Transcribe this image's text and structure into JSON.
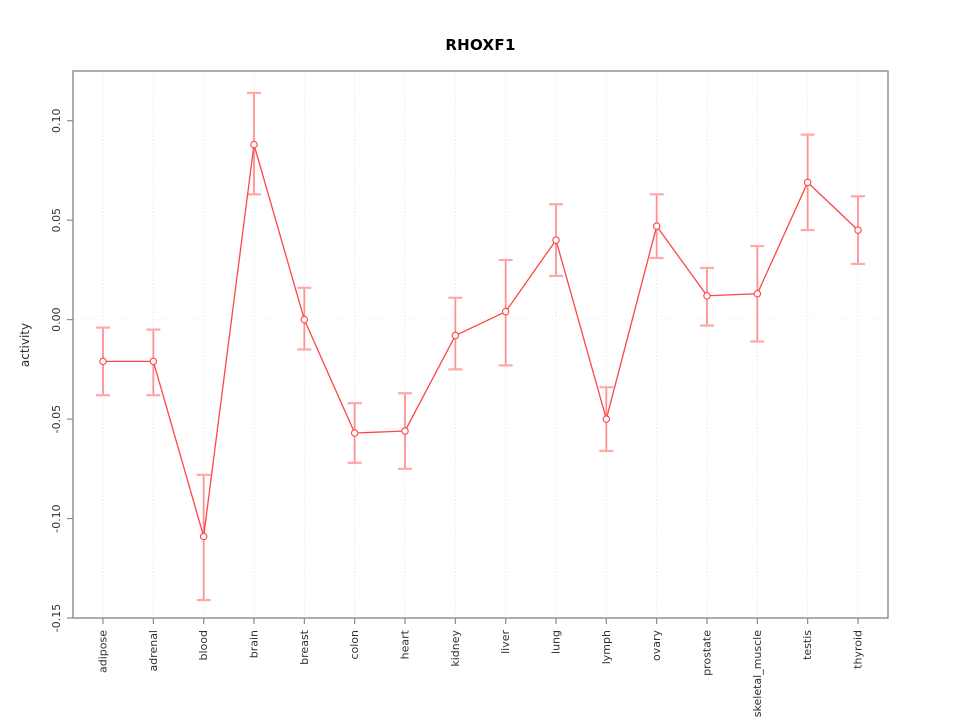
{
  "colors": {
    "series": "#ff4545",
    "marker_fill": "#ffffff",
    "error_bar": "#ff9090",
    "error_cap": "#ffa8a8",
    "frame": "#8a8a8a",
    "tick": "#8a8a8a",
    "grid": "#e2e2e2",
    "zero_line": "#ededed",
    "text": "#303030",
    "title": "#000000",
    "background": "#ffffff"
  },
  "chart_data": {
    "type": "line",
    "title": "RHOXF1",
    "xlabel": "",
    "ylabel": "activity",
    "categories": [
      "adipose",
      "adrenal",
      "blood",
      "brain",
      "breast",
      "colon",
      "heart",
      "kidney",
      "liver",
      "lung",
      "lymph",
      "ovary",
      "prostate",
      "skeletal_muscle",
      "testis",
      "thyroid"
    ],
    "series": [
      {
        "name": "RHOXF1 activity",
        "values": [
          -0.021,
          -0.021,
          -0.109,
          0.088,
          0.0,
          -0.057,
          -0.056,
          -0.008,
          0.004,
          0.04,
          -0.05,
          0.047,
          0.012,
          0.013,
          0.069,
          0.045
        ],
        "upper": [
          -0.004,
          -0.005,
          -0.078,
          0.114,
          0.016,
          -0.042,
          -0.037,
          0.011,
          0.03,
          0.058,
          -0.034,
          0.063,
          0.026,
          0.037,
          0.093,
          0.062
        ],
        "lower": [
          -0.038,
          -0.038,
          -0.141,
          0.063,
          -0.015,
          -0.072,
          -0.075,
          -0.025,
          -0.023,
          0.022,
          -0.066,
          0.031,
          -0.003,
          -0.011,
          0.045,
          0.028
        ]
      }
    ],
    "ylim": [
      -0.15,
      0.125
    ],
    "yticks": [
      0.1,
      0.05,
      0.0,
      -0.05,
      -0.1,
      -0.15
    ],
    "ytick_labels": [
      "0.10",
      "0.05",
      "0.00",
      "-0.05",
      "-0.10",
      "-0.15"
    ],
    "grid": {
      "vertical_dotted_per_category": true,
      "horizontal_zero_line": true
    },
    "legend": null,
    "marker": "open-circle",
    "error_bars": true
  }
}
